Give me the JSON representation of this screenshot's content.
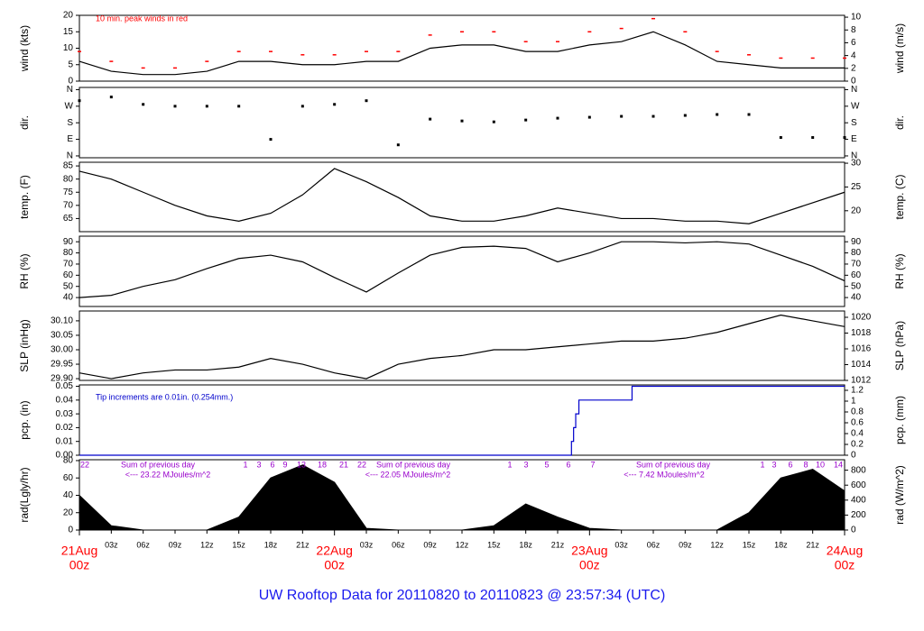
{
  "title": "UW Rooftop Data for 20110820  to  20110823 @ 23:57:34  (UTC)",
  "chart_data": [
    {
      "type": "line",
      "ylabel": "wind (kts)",
      "y2label": "wind (m/s)",
      "annotation": "10 min. peak winds in red",
      "xlim": [
        0,
        72
      ],
      "ylim": [
        0,
        20
      ],
      "yticks": [
        0,
        5,
        10,
        15,
        20
      ],
      "y2lim": [
        0,
        10.29
      ],
      "y2ticks": [
        0,
        2,
        4,
        6,
        8,
        10
      ],
      "x": [
        0,
        3,
        6,
        9,
        12,
        15,
        18,
        21,
        24,
        27,
        30,
        33,
        36,
        39,
        42,
        45,
        48,
        51,
        54,
        57,
        60,
        63,
        66,
        69,
        72
      ],
      "series": [
        {
          "color": "#000000",
          "values": [
            6,
            3,
            2,
            2,
            3,
            6,
            6,
            5,
            5,
            6,
            6,
            10,
            11,
            11,
            9,
            9,
            11,
            12,
            15,
            11,
            6,
            5,
            4,
            4,
            4
          ]
        },
        {
          "color": "#ff0000",
          "style": "dash",
          "values": [
            9,
            6,
            4,
            4,
            6,
            9,
            9,
            8,
            8,
            9,
            9,
            14,
            15,
            15,
            12,
            12,
            15,
            16,
            19,
            15,
            9,
            8,
            7,
            7,
            7
          ]
        }
      ]
    },
    {
      "type": "scatter",
      "ylabel": "dir.",
      "y2label": "dir.",
      "xlim": [
        0,
        72
      ],
      "ylim": [
        -10,
        372
      ],
      "yticks": [
        {
          "value": 0,
          "label": "N"
        },
        {
          "value": 90,
          "label": "E"
        },
        {
          "value": 180,
          "label": "S"
        },
        {
          "value": 270,
          "label": "W"
        },
        {
          "value": 360,
          "label": "N"
        }
      ],
      "y2lim": [
        -10,
        372
      ],
      "y2ticks": [
        {
          "value": 0,
          "label": "N"
        },
        {
          "value": 90,
          "label": "E"
        },
        {
          "value": 180,
          "label": "S"
        },
        {
          "value": 270,
          "label": "W"
        },
        {
          "value": 360,
          "label": "N"
        }
      ],
      "x": [
        0,
        3,
        6,
        9,
        12,
        15,
        18,
        21,
        24,
        27,
        30,
        33,
        36,
        39,
        42,
        45,
        48,
        51,
        54,
        57,
        60,
        63,
        66,
        69,
        72
      ],
      "series": [
        {
          "color": "#000000",
          "values": [
            300,
            320,
            280,
            270,
            270,
            270,
            90,
            270,
            280,
            300,
            60,
            200,
            190,
            185,
            195,
            205,
            210,
            215,
            215,
            220,
            225,
            225,
            100,
            100,
            100
          ]
        }
      ]
    },
    {
      "type": "line",
      "ylabel": "temp. (F)",
      "y2label": "temp. (C)",
      "xlim": [
        0,
        72
      ],
      "ylim": [
        60,
        86.4
      ],
      "yticks": [
        65,
        70,
        75,
        80,
        85
      ],
      "y2lim": [
        15.6,
        30.2
      ],
      "y2ticks": [
        20,
        25,
        30
      ],
      "x": [
        0,
        3,
        6,
        9,
        12,
        15,
        18,
        21,
        24,
        27,
        30,
        33,
        36,
        39,
        42,
        45,
        48,
        51,
        54,
        57,
        60,
        63,
        66,
        69,
        72
      ],
      "series": [
        {
          "color": "#000000",
          "values": [
            83,
            80,
            75,
            70,
            66,
            64,
            67,
            74,
            84,
            79,
            73,
            66,
            64,
            64,
            66,
            69,
            67,
            65,
            65,
            64,
            64,
            63,
            67,
            71,
            75
          ]
        }
      ]
    },
    {
      "type": "line",
      "ylabel": "RH (%)",
      "y2label": "RH (%)",
      "xlim": [
        0,
        72
      ],
      "ylim": [
        32,
        95
      ],
      "yticks": [
        40,
        50,
        60,
        70,
        80,
        90
      ],
      "y2lim": [
        32,
        95
      ],
      "y2ticks": [
        40,
        50,
        60,
        70,
        80,
        90
      ],
      "x": [
        0,
        3,
        6,
        9,
        12,
        15,
        18,
        21,
        24,
        27,
        30,
        33,
        36,
        39,
        42,
        45,
        48,
        51,
        54,
        57,
        60,
        63,
        66,
        69,
        72
      ],
      "series": [
        {
          "color": "#000000",
          "values": [
            40,
            42,
            50,
            56,
            66,
            75,
            78,
            72,
            58,
            45,
            62,
            78,
            85,
            86,
            84,
            72,
            80,
            90,
            90,
            89,
            90,
            88,
            78,
            68,
            55
          ]
        }
      ]
    },
    {
      "type": "line",
      "ylabel": "SLP (inHg)",
      "y2label": "SLP (hPa)",
      "xlim": [
        0,
        72
      ],
      "ylim": [
        29.894,
        30.134
      ],
      "yticks": [
        {
          "value": 29.9,
          "label": "29.90"
        },
        29.95,
        {
          "value": 30.0,
          "label": "30.00"
        },
        30.05,
        {
          "value": 30.1,
          "label": "30.10"
        }
      ],
      "y2lim": [
        1012,
        1020.8
      ],
      "y2ticks": [
        1012,
        1014,
        1016,
        1018,
        1020
      ],
      "x": [
        0,
        3,
        6,
        9,
        12,
        15,
        18,
        21,
        24,
        27,
        30,
        33,
        36,
        39,
        42,
        45,
        48,
        51,
        54,
        57,
        60,
        63,
        66,
        69,
        72
      ],
      "series": [
        {
          "color": "#000000",
          "values": [
            29.92,
            29.9,
            29.92,
            29.93,
            29.93,
            29.94,
            29.97,
            29.95,
            29.92,
            29.9,
            29.95,
            29.97,
            29.98,
            30.0,
            30.0,
            30.01,
            30.02,
            30.03,
            30.03,
            30.04,
            30.06,
            30.09,
            30.12,
            30.1,
            30.08
          ]
        }
      ]
    },
    {
      "type": "step",
      "ylabel": "pcp. (in)",
      "y2label": "pcp. (mm)",
      "annotation": "Tip increments are 0.01in. (0.254mm.)",
      "xlim": [
        0,
        72
      ],
      "ylim": [
        0,
        0.051
      ],
      "yticks": [
        {
          "value": 0,
          "label": "0.00"
        },
        0.01,
        0.02,
        0.03,
        0.04,
        0.05
      ],
      "y2lim": [
        0,
        1.3
      ],
      "y2ticks": [
        0,
        0.2,
        0.4,
        0.6,
        0.8,
        1,
        1.2
      ],
      "x": [
        0,
        46.3,
        46.5,
        46.7,
        47.0,
        52.0,
        72
      ],
      "series": [
        {
          "color": "#0000cc",
          "values": [
            0,
            0.01,
            0.02,
            0.03,
            0.04,
            0.05,
            0.05
          ]
        }
      ]
    },
    {
      "type": "area",
      "ylabel": "rad(Lgly/hr)",
      "y2label": "rad (W/m^2)",
      "xlim": [
        0,
        72
      ],
      "ylim": [
        0,
        81
      ],
      "yticks": [
        0,
        20,
        40,
        60,
        80
      ],
      "y2lim": [
        0,
        940
      ],
      "y2ticks": [
        0,
        200,
        400,
        600,
        800
      ],
      "x": [
        0,
        3,
        6,
        9,
        12,
        15,
        18,
        21,
        24,
        27,
        30,
        33,
        36,
        39,
        42,
        45,
        48,
        51,
        54,
        57,
        60,
        63,
        66,
        69,
        72
      ],
      "series": [
        {
          "color": "#000000",
          "values": [
            40,
            5,
            0,
            0,
            0,
            15,
            60,
            75,
            55,
            2,
            0,
            0,
            0,
            5,
            30,
            15,
            2,
            0,
            0,
            0,
            0,
            20,
            60,
            70,
            45
          ]
        }
      ],
      "hour_labels": [
        "22",
        "1",
        "3",
        "6",
        "9",
        "13",
        "18",
        "21",
        "22",
        "1",
        "3",
        "5",
        "6",
        "7",
        "1",
        "3",
        "6",
        "8",
        "10",
        "14"
      ],
      "daily_sums": [
        {
          "text": "Sum of previous day",
          "total": "<--- 23.22 MJoules/m^2"
        },
        {
          "text": "Sum of previous day",
          "total": "<--- 22.05 MJoules/m^2"
        },
        {
          "text": "Sum of previous day",
          "total": "<--- 7.42 MJoules/m^2"
        }
      ],
      "xticks": [
        {
          "value": 3,
          "label": "03z"
        },
        {
          "value": 6,
          "label": "06z"
        },
        {
          "value": 9,
          "label": "09z"
        },
        {
          "value": 12,
          "label": "12z"
        },
        {
          "value": 15,
          "label": "15z"
        },
        {
          "value": 18,
          "label": "18z"
        },
        {
          "value": 21,
          "label": "21z"
        },
        {
          "value": 27,
          "label": "03z"
        },
        {
          "value": 30,
          "label": "06z"
        },
        {
          "value": 33,
          "label": "09z"
        },
        {
          "value": 36,
          "label": "12z"
        },
        {
          "value": 39,
          "label": "15z"
        },
        {
          "value": 42,
          "label": "18z"
        },
        {
          "value": 45,
          "label": "21z"
        },
        {
          "value": 51,
          "label": "03z"
        },
        {
          "value": 54,
          "label": "06z"
        },
        {
          "value": 57,
          "label": "09z"
        },
        {
          "value": 60,
          "label": "12z"
        },
        {
          "value": 63,
          "label": "15z"
        },
        {
          "value": 66,
          "label": "18z"
        },
        {
          "value": 69,
          "label": "21z"
        }
      ],
      "day_ticks": [
        {
          "value": 0,
          "date": "21Aug",
          "hour": "00z"
        },
        {
          "value": 24,
          "date": "22Aug",
          "hour": "00z"
        },
        {
          "value": 48,
          "date": "23Aug",
          "hour": "00z"
        },
        {
          "value": 72,
          "date": "24Aug",
          "hour": "00z"
        }
      ]
    }
  ]
}
